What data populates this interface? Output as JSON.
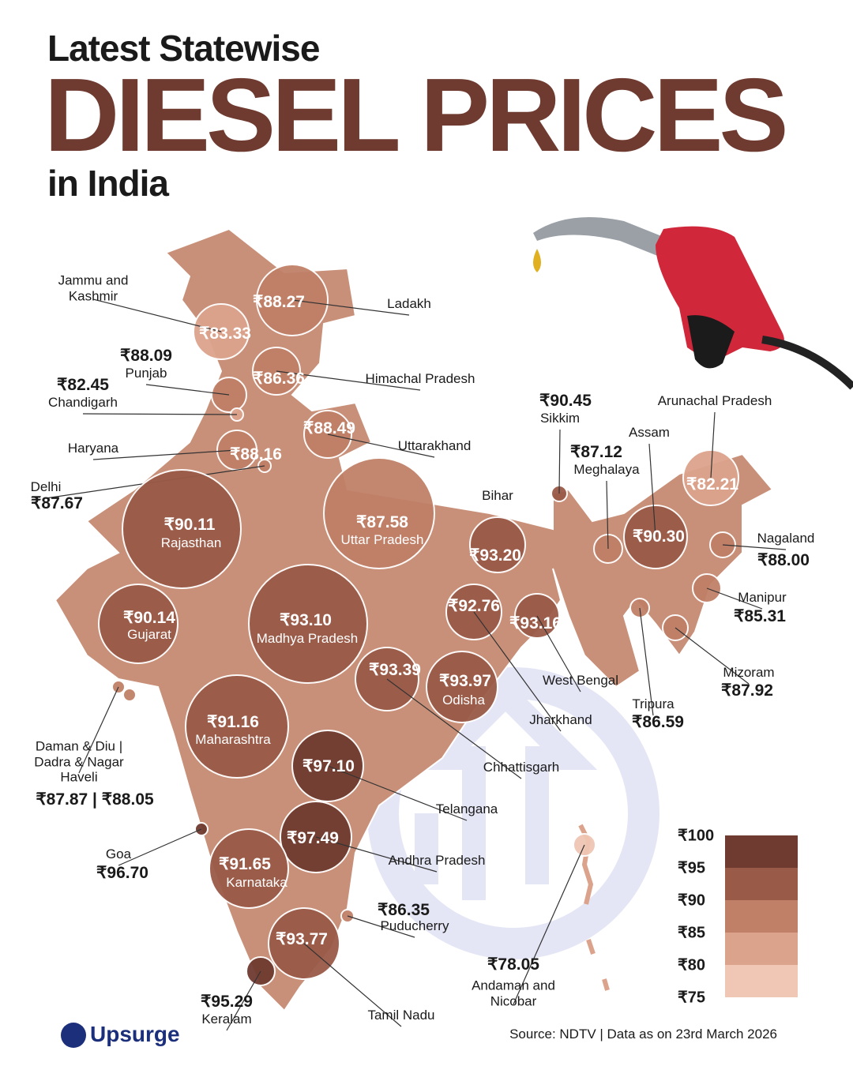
{
  "header": {
    "kicker": "Latest Statewise",
    "title": "DIESEL PRICES",
    "subtitle": "in India"
  },
  "states": [
    {
      "name": "Jammu and Kashmir",
      "price": 83.33,
      "price_label": "₹83.33"
    },
    {
      "name": "Ladakh",
      "price": 88.27,
      "price_label": "₹88.27"
    },
    {
      "name": "Himachal Pradesh",
      "price": 86.36,
      "price_label": "₹86.36"
    },
    {
      "name": "Punjab",
      "price": 88.09,
      "price_label": "₹88.09"
    },
    {
      "name": "Chandigarh",
      "price": 82.45,
      "price_label": "₹82.45"
    },
    {
      "name": "Uttarakhand",
      "price": 88.49,
      "price_label": "₹88.49"
    },
    {
      "name": "Haryana",
      "price": 88.16,
      "price_label": "₹88.16"
    },
    {
      "name": "Delhi",
      "price": 87.67,
      "price_label": "₹87.67"
    },
    {
      "name": "Rajasthan",
      "price": 90.11,
      "price_label": "₹90.11"
    },
    {
      "name": "Uttar Pradesh",
      "price": 87.58,
      "price_label": "₹87.58"
    },
    {
      "name": "Bihar",
      "price": 93.2,
      "price_label": "₹93.20"
    },
    {
      "name": "Sikkim",
      "price": 90.45,
      "price_label": "₹90.45"
    },
    {
      "name": "Arunachal Pradesh",
      "price": 82.21,
      "price_label": "₹82.21"
    },
    {
      "name": "Assam",
      "price": 90.3,
      "price_label": "₹90.30"
    },
    {
      "name": "Meghalaya",
      "price": 87.12,
      "price_label": "₹87.12"
    },
    {
      "name": "Nagaland",
      "price": 88.0,
      "price_label": "₹88.00"
    },
    {
      "name": "Manipur",
      "price": 85.31,
      "price_label": "₹85.31"
    },
    {
      "name": "Mizoram",
      "price": 87.92,
      "price_label": "₹87.92"
    },
    {
      "name": "Tripura",
      "price": 86.59,
      "price_label": "₹86.59"
    },
    {
      "name": "West Bengal",
      "price": 93.16,
      "price_label": "₹93.16"
    },
    {
      "name": "Jharkhand",
      "price": 92.76,
      "price_label": "₹92.76"
    },
    {
      "name": "Odisha",
      "price": 93.97,
      "price_label": "₹93.97"
    },
    {
      "name": "Chhattisgarh",
      "price": 93.39,
      "price_label": "₹93.39"
    },
    {
      "name": "Gujarat",
      "price": 90.14,
      "price_label": "₹90.14"
    },
    {
      "name": "Madhya Pradesh",
      "price": 93.1,
      "price_label": "₹93.10"
    },
    {
      "name": "Maharashtra",
      "price": 91.16,
      "price_label": "₹91.16"
    },
    {
      "name": "Telangana",
      "price": 97.1,
      "price_label": "₹97.10"
    },
    {
      "name": "Andhra Pradesh",
      "price": 97.49,
      "price_label": "₹97.49"
    },
    {
      "name": "Goa",
      "price": 96.7,
      "price_label": "₹96.70"
    },
    {
      "name": "Karnataka",
      "price": 91.65,
      "price_label": "₹91.65"
    },
    {
      "name": "Puducherry",
      "price": 86.35,
      "price_label": "₹86.35"
    },
    {
      "name": "Keralam",
      "price": 95.29,
      "price_label": "₹95.29"
    },
    {
      "name": "Tamil Nadu",
      "price": 93.77,
      "price_label": "₹93.77"
    },
    {
      "name": "Andaman and Nicobar",
      "price": 78.05,
      "price_label": "₹78.05"
    },
    {
      "name": "Daman & Diu | Dadra & Nagar Haveli",
      "price": [
        87.87,
        88.05
      ],
      "price_label": "₹87.87 | ₹88.05"
    }
  ],
  "legend": {
    "ticks": [
      {
        "value": 100,
        "label": "₹100"
      },
      {
        "value": 95,
        "label": "₹95"
      },
      {
        "value": 90,
        "label": "₹90"
      },
      {
        "value": 85,
        "label": "₹85"
      },
      {
        "value": 80,
        "label": "₹80"
      },
      {
        "value": 75,
        "label": "₹75"
      }
    ],
    "colors": [
      "#6f3b30",
      "#9a5a48",
      "#c08068",
      "#dca38c",
      "#f0c6b4"
    ]
  },
  "footer": {
    "brand": "Upsurge",
    "source": "Source: NDTV | Data as on 23rd March 2026"
  }
}
